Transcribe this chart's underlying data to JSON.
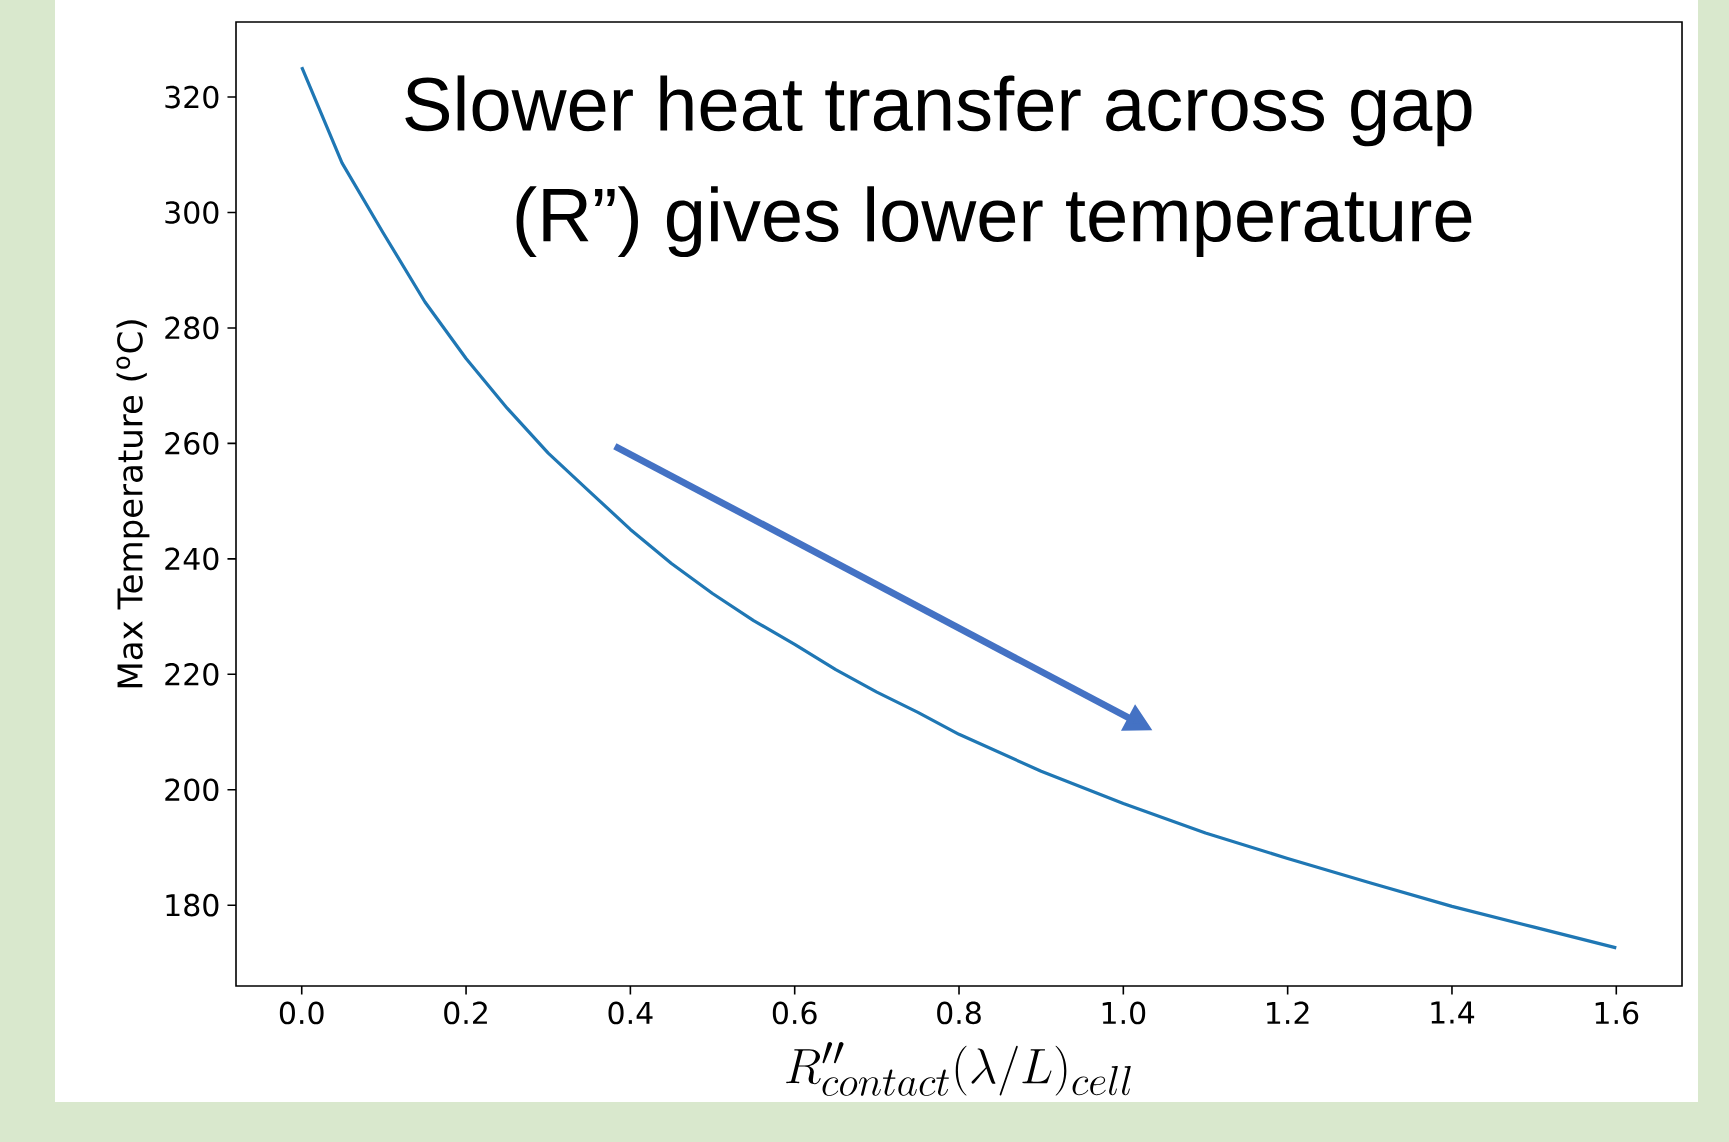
{
  "chart_data": {
    "type": "line",
    "xlabel": "R''_{contact}(\\lambda/L)_{cell}",
    "ylabel": "Max Temperature ($^{o}$C)",
    "annotations": [
      "Slower heat transfer across gap",
      "(R”) gives lower temperature"
    ],
    "x": [
      0,
      0.049,
      0.099,
      0.15,
      0.2,
      0.25,
      0.3,
      0.35,
      0.4,
      0.45,
      0.5,
      0.55,
      0.6,
      0.65,
      0.7,
      0.75,
      0.8,
      0.9,
      1.0,
      1.1,
      1.2,
      1.3,
      1.4,
      1.5,
      1.6
    ],
    "series": [
      {
        "color": "#1f77b4",
        "values": [
          325.2,
          308.6,
          296.5,
          284.5,
          274.7,
          266.1,
          258.3,
          251.7,
          245.1,
          239.2,
          234.0,
          229.3,
          225.2,
          220.8,
          216.9,
          213.4,
          209.6,
          203.2,
          197.6,
          192.5,
          188.1,
          183.9,
          179.8,
          176.2,
          172.6
        ]
      }
    ],
    "xlim": [
      -0.08,
      1.68
    ],
    "ylim": [
      166,
      333
    ],
    "xticks": [
      {
        "value": 0,
        "label": "0.0"
      },
      0.2,
      0.4,
      0.6,
      0.8,
      {
        "value": 1,
        "label": "1.0"
      },
      1.2,
      1.4,
      1.6
    ],
    "yticks": [
      180,
      200,
      220,
      240,
      260,
      280,
      300,
      320
    ],
    "grid": false,
    "marker": "none",
    "line_style": "solid"
  }
}
